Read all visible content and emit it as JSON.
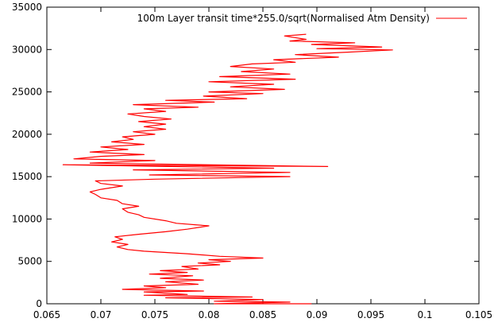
{
  "chart_data": {
    "type": "line",
    "title": "",
    "xlabel": "",
    "ylabel": "",
    "xlim": [
      0.065,
      0.105
    ],
    "ylim": [
      0,
      35000
    ],
    "x_ticks": [
      0.065,
      0.07,
      0.075,
      0.08,
      0.085,
      0.09,
      0.095,
      0.1,
      0.105
    ],
    "x_tick_labels": [
      "0.065",
      "0.07",
      "0.075",
      "0.08",
      "0.085",
      "0.09",
      "0.095",
      "0.1",
      "0.105"
    ],
    "y_ticks": [
      0,
      5000,
      10000,
      15000,
      20000,
      25000,
      30000,
      35000
    ],
    "y_tick_labels": [
      "0",
      "5000",
      "10000",
      "15000",
      "20000",
      "25000",
      "30000",
      "35000"
    ],
    "grid": false,
    "legend_position": "top-right",
    "series": [
      {
        "name": "100m Layer transit time*255.0/sqrt(Normalised Atm Density)",
        "color": "#ff0000",
        "points": [
          [
            0.0895,
            0
          ],
          [
            0.0805,
            0
          ],
          [
            0.0875,
            200
          ],
          [
            0.0805,
            300
          ],
          [
            0.085,
            500
          ],
          [
            0.076,
            700
          ],
          [
            0.084,
            800
          ],
          [
            0.074,
            1000
          ],
          [
            0.078,
            1100
          ],
          [
            0.074,
            1400
          ],
          [
            0.0795,
            1500
          ],
          [
            0.072,
            1700
          ],
          [
            0.076,
            1900
          ],
          [
            0.074,
            2100
          ],
          [
            0.079,
            2300
          ],
          [
            0.076,
            2600
          ],
          [
            0.0795,
            2800
          ],
          [
            0.0755,
            3000
          ],
          [
            0.0785,
            3300
          ],
          [
            0.0745,
            3500
          ],
          [
            0.078,
            3700
          ],
          [
            0.0755,
            3900
          ],
          [
            0.079,
            4100
          ],
          [
            0.0775,
            4400
          ],
          [
            0.081,
            4600
          ],
          [
            0.079,
            4800
          ],
          [
            0.082,
            5000
          ],
          [
            0.08,
            5200
          ],
          [
            0.085,
            5400
          ],
          [
            0.081,
            5600
          ],
          [
            0.078,
            5900
          ],
          [
            0.074,
            6200
          ],
          [
            0.0725,
            6400
          ],
          [
            0.0715,
            6700
          ],
          [
            0.0725,
            7000
          ],
          [
            0.071,
            7300
          ],
          [
            0.072,
            7600
          ],
          [
            0.0713,
            7900
          ],
          [
            0.0735,
            8200
          ],
          [
            0.076,
            8500
          ],
          [
            0.078,
            8800
          ],
          [
            0.08,
            9200
          ],
          [
            0.077,
            9500
          ],
          [
            0.076,
            9800
          ],
          [
            0.074,
            10200
          ],
          [
            0.0735,
            10500
          ],
          [
            0.0725,
            10800
          ],
          [
            0.072,
            11200
          ],
          [
            0.0735,
            11500
          ],
          [
            0.072,
            11800
          ],
          [
            0.0715,
            12200
          ],
          [
            0.07,
            12500
          ],
          [
            0.0695,
            12900
          ],
          [
            0.069,
            13200
          ],
          [
            0.07,
            13500
          ],
          [
            0.072,
            13900
          ],
          [
            0.07,
            14200
          ],
          [
            0.0695,
            14500
          ],
          [
            0.075,
            14700
          ],
          [
            0.0875,
            15000
          ],
          [
            0.0745,
            15200
          ],
          [
            0.0875,
            15500
          ],
          [
            0.073,
            15800
          ],
          [
            0.086,
            16000
          ],
          [
            0.0665,
            16400
          ],
          [
            0.091,
            16200
          ],
          [
            0.069,
            16600
          ],
          [
            0.075,
            16900
          ],
          [
            0.0675,
            17100
          ],
          [
            0.07,
            17400
          ],
          [
            0.074,
            17600
          ],
          [
            0.069,
            17900
          ],
          [
            0.0725,
            18200
          ],
          [
            0.07,
            18500
          ],
          [
            0.074,
            18800
          ],
          [
            0.071,
            19100
          ],
          [
            0.073,
            19400
          ],
          [
            0.072,
            19700
          ],
          [
            0.075,
            20000
          ],
          [
            0.073,
            20300
          ],
          [
            0.076,
            20600
          ],
          [
            0.074,
            20900
          ],
          [
            0.076,
            21200
          ],
          [
            0.0735,
            21500
          ],
          [
            0.0765,
            21800
          ],
          [
            0.074,
            22100
          ],
          [
            0.0725,
            22400
          ],
          [
            0.076,
            22700
          ],
          [
            0.074,
            23000
          ],
          [
            0.079,
            23200
          ],
          [
            0.073,
            23500
          ],
          [
            0.0805,
            23800
          ],
          [
            0.076,
            24000
          ],
          [
            0.0835,
            24200
          ],
          [
            0.0795,
            24500
          ],
          [
            0.085,
            24800
          ],
          [
            0.08,
            25000
          ],
          [
            0.087,
            25300
          ],
          [
            0.082,
            25600
          ],
          [
            0.086,
            25900
          ],
          [
            0.08,
            26200
          ],
          [
            0.088,
            26500
          ],
          [
            0.081,
            26800
          ],
          [
            0.0875,
            27100
          ],
          [
            0.083,
            27400
          ],
          [
            0.086,
            27700
          ],
          [
            0.082,
            28000
          ],
          [
            0.084,
            28300
          ],
          [
            0.088,
            28500
          ],
          [
            0.086,
            28800
          ],
          [
            0.092,
            29100
          ],
          [
            0.088,
            29400
          ],
          [
            0.093,
            29700
          ],
          [
            0.097,
            29950
          ],
          [
            0.09,
            30100
          ],
          [
            0.096,
            30300
          ],
          [
            0.0895,
            30600
          ],
          [
            0.0935,
            30800
          ],
          [
            0.0875,
            31000
          ],
          [
            0.089,
            31200
          ],
          [
            0.087,
            31600
          ],
          [
            0.089,
            31800
          ]
        ]
      }
    ]
  }
}
